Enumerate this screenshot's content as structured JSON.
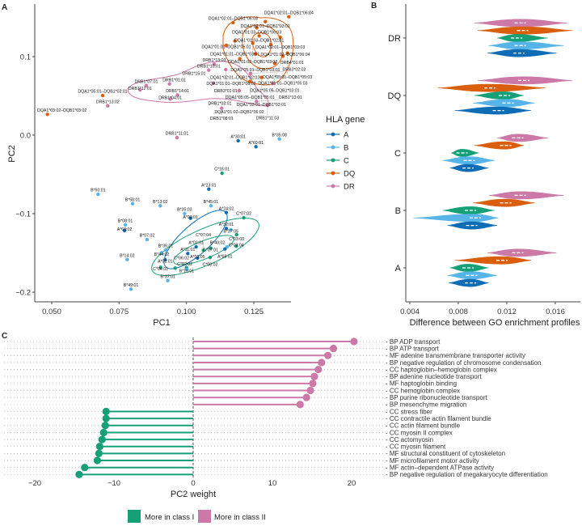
{
  "colors": {
    "A": "#0f6db5",
    "B": "#56b4e9",
    "C": "#16a077",
    "DQ": "#d95f0e",
    "DR": "#cc79a7"
  },
  "panels": {
    "a": "A",
    "b": "B",
    "c": "C"
  },
  "chart_data": [
    {
      "type": "scatter",
      "panel": "A",
      "xlabel": "PC1",
      "ylabel": "PC2",
      "xlim": [
        0.0437,
        0.139
      ],
      "ylim": [
        -0.211,
        0.167
      ],
      "xticks": [
        "0.050",
        "0.075",
        "0.100",
        "0.125"
      ],
      "xtick_values": [
        0.05,
        0.075,
        0.1,
        0.125
      ],
      "yticks": [
        "0.1",
        "0.0",
        "−0.1",
        "−0.2"
      ],
      "ytick_values": [
        0.1,
        0.0,
        -0.1,
        -0.2
      ],
      "legend": {
        "title": "HLA gene",
        "entries": [
          "A",
          "B",
          "C",
          "DQ",
          "DR"
        ],
        "placement": "right"
      },
      "points": [
        {
          "label": "DQA1*03:02–DQB1*03:02",
          "gene": "DQ",
          "x": 0.0484,
          "y": 0.0265
        },
        {
          "label": "DQA1*05:01–DQB1*02:01",
          "gene": "DQ",
          "x": 0.0689,
          "y": 0.0505
        },
        {
          "label": "DQA1*02:01–DQB1*06:03",
          "gene": "DQ",
          "x": 0.1173,
          "y": 0.1433
        },
        {
          "label": "DQA1*02:01–DQB1*06:04",
          "gene": "DQ",
          "x": 0.138,
          "y": 0.1508
        },
        {
          "label": "DQA1*02:01–DQB1*03:01",
          "gene": "DQ",
          "x": 0.1293,
          "y": 0.1446
        },
        {
          "label": "DQA1*01:03–DQB1*06:03",
          "gene": "DQ",
          "x": 0.1261,
          "y": 0.1368
        },
        {
          "label": "DQA1*01:03–DQB1*02:01",
          "gene": "DQ",
          "x": 0.127,
          "y": 0.1265
        },
        {
          "label": "DQA1*02:01–DQB1*03:03",
          "gene": "DQ",
          "x": 0.1348,
          "y": 0.1247
        },
        {
          "label": "DQA1*01:01–DQB1*03:01",
          "gene": "DQ",
          "x": 0.118,
          "y": 0.12
        },
        {
          "label": "DQA1*01:02–DQB1*03:03",
          "gene": "DQ",
          "x": 0.1246,
          "y": 0.1172
        },
        {
          "label": "DQA1*01:02–DQB1*06:04",
          "gene": "DQ",
          "x": 0.1313,
          "y": 0.1155
        },
        {
          "label": "DQA1*01:01–DQB1*05:01",
          "gene": "DQ",
          "x": 0.1148,
          "y": 0.1144
        },
        {
          "label": "DQA1*05:01–DQB1*03:01",
          "gene": "DQ",
          "x": 0.1256,
          "y": 0.1034
        },
        {
          "label": "DQA1*05:01–DQB1*05:03",
          "gene": "DQ",
          "x": 0.1375,
          "y": 0.1046
        },
        {
          "label": "DQA1*02:01–DQB1*02:02",
          "gene": "DQ",
          "x": 0.1198,
          "y": 0.0972
        },
        {
          "label": "DQA1*01:01–DQB1*05:03",
          "gene": "DQ",
          "x": 0.1358,
          "y": 0.1007
        },
        {
          "label": "DQA1*05:05–DQB1*03:01",
          "gene": "DQ",
          "x": 0.1328,
          "y": 0.0914
        },
        {
          "label": "DQA1*01:01–DQB1*06:02",
          "gene": "DQ",
          "x": 0.1238,
          "y": 0.0784
        },
        {
          "label": "DQA1*05:05–DQB1*05:01",
          "gene": "DQ",
          "x": 0.1236,
          "y": 0.0684
        },
        {
          "label": "DQA1*03:01–DQB1*03:01",
          "gene": "DQ",
          "x": 0.1278,
          "y": 0.0735
        },
        {
          "label": "DQA1*01:02–DQB1*06:02",
          "gene": "DQ",
          "x": 0.1196,
          "y": 0.0567
        },
        {
          "label": "DRB1*13:02",
          "gene": "DR",
          "x": 0.0708,
          "y": 0.0374
        },
        {
          "label": "DRB1*07:01",
          "gene": "DR",
          "x": 0.0851,
          "y": 0.0632
        },
        {
          "label": "DRB1*12:01",
          "gene": "DR",
          "x": 0.0828,
          "y": 0.0577
        },
        {
          "label": "DRB1*01:01",
          "gene": "DR",
          "x": 0.0937,
          "y": 0.0653
        },
        {
          "label": "DRB1*14:01",
          "gene": "DR",
          "x": 0.0967,
          "y": 0.0512
        },
        {
          "label": "DRB1*04:01",
          "gene": "DR",
          "x": 0.094,
          "y": 0.0461
        },
        {
          "label": "DRB1*10:01",
          "gene": "DR",
          "x": 0.1083,
          "y": 0.0828
        },
        {
          "label": "DRB1*13:03",
          "gene": "DR",
          "x": 0.1103,
          "y": 0.0904
        },
        {
          "label": "DRB3*01:01",
          "gene": "DR",
          "x": 0.1146,
          "y": 0.0835
        },
        {
          "label": "DRB3*02:02",
          "gene": "DR",
          "x": 0.1238,
          "y": 0.0787
        },
        {
          "label": "DRB1*15:01",
          "gene": "DR",
          "x": 0.11,
          "y": 0.0663
        },
        {
          "label": "DRB1*03:01",
          "gene": "DR",
          "x": 0.1196,
          "y": 0.0567
        },
        {
          "label": "DRB1*08:01",
          "gene": "DR",
          "x": 0.1131,
          "y": 0.0343
        },
        {
          "label": "DRB1*13:01",
          "gene": "DR",
          "x": 0.126,
          "y": 0.043
        },
        {
          "label": "DRB1*11:03",
          "gene": "DR",
          "x": 0.1301,
          "y": 0.0381
        },
        {
          "label": "DRB4*01:01",
          "gene": "DR",
          "x": 0.132,
          "y": 0.0657
        },
        {
          "label": "DRB1*11:01",
          "gene": "DR",
          "x": 0.0965,
          "y": -0.0031
        },
        {
          "label": "A*30:01",
          "gene": "A",
          "x": 0.1192,
          "y": -0.0072
        },
        {
          "label": "A*69:01",
          "gene": "A",
          "x": 0.1258,
          "y": -0.0148
        },
        {
          "label": "B*35:08",
          "gene": "B",
          "x": 0.1345,
          "y": -0.0048
        },
        {
          "label": "C*16:01",
          "gene": "C",
          "x": 0.1132,
          "y": -0.0485
        },
        {
          "label": "A*23:01",
          "gene": "A",
          "x": 0.1083,
          "y": -0.0687
        },
        {
          "label": "B*50:01",
          "gene": "B",
          "x": 0.0672,
          "y": -0.0753
        },
        {
          "label": "B*58:01",
          "gene": "B",
          "x": 0.08,
          "y": -0.0873
        },
        {
          "label": "B*13:02",
          "gene": "B",
          "x": 0.0903,
          "y": -0.09
        },
        {
          "label": "B*45:01",
          "gene": "B",
          "x": 0.1091,
          "y": -0.09
        },
        {
          "label": "B*35:03",
          "gene": "B",
          "x": 0.0993,
          "y": -0.1
        },
        {
          "label": "A*03:01",
          "gene": "A",
          "x": 0.1015,
          "y": -0.1059
        },
        {
          "label": "A*24:02",
          "gene": "A",
          "x": 0.1148,
          "y": -0.0986
        },
        {
          "label": "C*07:02",
          "gene": "C",
          "x": 0.1213,
          "y": -0.1052
        },
        {
          "label": "A*32:01",
          "gene": "A",
          "x": 0.1148,
          "y": -0.1189
        },
        {
          "label": "B*27:05",
          "gene": "B",
          "x": 0.1165,
          "y": -0.1206
        },
        {
          "label": "C*03:03",
          "gene": "C",
          "x": 0.1186,
          "y": -0.1268
        },
        {
          "label": "B*08:01",
          "gene": "B",
          "x": 0.0773,
          "y": -0.1144
        },
        {
          "label": "A*68:02",
          "gene": "A",
          "x": 0.077,
          "y": -0.1216
        },
        {
          "label": "B*07:02",
          "gene": "B",
          "x": 0.0854,
          "y": -0.133
        },
        {
          "label": "B*35:01",
          "gene": "B",
          "x": 0.0923,
          "y": -0.1464
        },
        {
          "label": "C*03:04",
          "gene": "C",
          "x": 0.1185,
          "y": -0.1415
        },
        {
          "label": "B*40:02",
          "gene": "B",
          "x": 0.1151,
          "y": -0.1423
        },
        {
          "label": "A*02:01",
          "gene": "A",
          "x": 0.1036,
          "y": -0.1423
        },
        {
          "label": "C*07:01",
          "gene": "C",
          "x": 0.109,
          "y": -0.144
        },
        {
          "label": "A*11:01",
          "gene": "A",
          "x": 0.1005,
          "y": -0.1508
        },
        {
          "label": "C*07:04",
          "gene": "C",
          "x": 0.1063,
          "y": -0.1467
        },
        {
          "label": "B*44:02",
          "gene": "B",
          "x": 0.0908,
          "y": -0.1498
        },
        {
          "label": "B*14:02",
          "gene": "B",
          "x": 0.078,
          "y": -0.1585
        },
        {
          "label": "A*01:01",
          "gene": "A",
          "x": 0.0921,
          "y": -0.1588
        },
        {
          "label": "C*04:01",
          "gene": "C",
          "x": 0.0904,
          "y": -0.1684
        },
        {
          "label": "A*02:05",
          "gene": "A",
          "x": 0.1041,
          "y": -0.1567
        },
        {
          "label": "A*68:01",
          "gene": "A",
          "x": 0.1143,
          "y": -0.145
        },
        {
          "label": "C*08:02",
          "gene": "C",
          "x": 0.1088,
          "y": -0.1557
        },
        {
          "label": "C*02:02",
          "gene": "C",
          "x": 0.0958,
          "y": -0.1694
        },
        {
          "label": "C*06:02",
          "gene": "C",
          "x": 0.1,
          "y": -0.1688
        },
        {
          "label": "B*15:01",
          "gene": "B",
          "x": 0.1001,
          "y": -0.171
        },
        {
          "label": "B*37:01",
          "gene": "B",
          "x": 0.0931,
          "y": -0.1852
        },
        {
          "label": "B*49:01",
          "gene": "B",
          "x": 0.0794,
          "y": -0.1962
        }
      ]
    },
    {
      "type": "violin",
      "panel": "B",
      "xlabel": "Difference between GO enrichment profiles",
      "xlim": [
        0.0037,
        0.0173
      ],
      "xticks": [
        "0.004",
        "0.008",
        "0.012",
        "0.016"
      ],
      "xtick_values": [
        0.004,
        0.008,
        0.012,
        0.016
      ],
      "categories": [
        "DR",
        "DQ",
        "C",
        "B",
        "A"
      ],
      "series_order": [
        "DR",
        "DQ",
        "C",
        "B",
        "A"
      ],
      "groups": {
        "DR": {
          "DR": [
            0.0093,
            0.0131,
            0.017
          ],
          "DQ": [
            0.0096,
            0.0133,
            0.0174
          ],
          "C": [
            0.0112,
            0.0128,
            0.0154
          ],
          "B": [
            0.0105,
            0.0131,
            0.0167
          ],
          "A": [
            0.0104,
            0.013,
            0.0161
          ]
        },
        "DQ": {
          "DR": [
            0.0096,
            0.0134,
            0.0174
          ],
          "DQ": [
            0.0063,
            0.0106,
            0.0152
          ],
          "C": [
            0.0093,
            0.0118,
            0.0134
          ],
          "B": [
            0.0092,
            0.0121,
            0.0143
          ],
          "A": [
            0.0077,
            0.0113,
            0.014
          ]
        },
        "C": {
          "DR": [
            0.0112,
            0.0129,
            0.0154
          ],
          "DQ": [
            0.0093,
            0.0119,
            0.0134
          ],
          "C": [
            0.0074,
            0.0083,
            0.0097
          ],
          "B": [
            0.0067,
            0.0089,
            0.011
          ],
          "A": [
            0.0073,
            0.0088,
            0.0105
          ]
        },
        "B": {
          "DR": [
            0.0105,
            0.0131,
            0.0167
          ],
          "DQ": [
            0.0092,
            0.0119,
            0.0143
          ],
          "C": [
            0.0067,
            0.009,
            0.011
          ],
          "B": [
            0.0043,
            0.0094,
            0.0113
          ],
          "A": [
            0.0071,
            0.0091,
            0.0112
          ]
        },
        "A": {
          "DR": [
            0.0104,
            0.0129,
            0.0161
          ],
          "DQ": [
            0.0077,
            0.0116,
            0.014
          ],
          "C": [
            0.0073,
            0.0088,
            0.0105
          ],
          "B": [
            0.0071,
            0.0091,
            0.0112
          ],
          "A": [
            0.0072,
            0.009,
            0.0105
          ]
        }
      },
      "value_format": "[min, median, max]"
    },
    {
      "type": "lollipop",
      "panel": "C",
      "xlabel": "PC2 weight",
      "xlim": [
        -24.5,
        24.5
      ],
      "xticks": [
        "−20",
        "−10",
        "0",
        "10",
        "20"
      ],
      "xtick_values": [
        -20,
        -10,
        0,
        10,
        20
      ],
      "legend": {
        "entries": [
          {
            "label": "More in class I",
            "color": "#16a077"
          },
          {
            "label": "More in class II",
            "color": "#cc79a7"
          }
        ],
        "placement": "bottom"
      },
      "terms": [
        {
          "label": "BP ADP transport",
          "value": 20.3
        },
        {
          "label": "BP ATP transport",
          "value": 17.7
        },
        {
          "label": "MF adenine transmembrane transporter activity",
          "value": 17.0
        },
        {
          "label": "BP negative regulation of chromosome condensation",
          "value": 16.2
        },
        {
          "label": "CC haptoglobin–hemoglobin complex",
          "value": 15.8
        },
        {
          "label": "BP adenine nucleotide transport",
          "value": 15.3
        },
        {
          "label": "MF haptoglobin binding",
          "value": 15.1
        },
        {
          "label": "CC hemoglobin complex",
          "value": 14.8
        },
        {
          "label": "BP purine ribonucleotide transport",
          "value": 14.3
        },
        {
          "label": "BP mesenchyme migration",
          "value": 13.5
        },
        {
          "label": "CC stress fiber",
          "value": -11.0
        },
        {
          "label": "CC contractile actin filament bundle",
          "value": -11.0
        },
        {
          "label": "CC actin filament bundle",
          "value": -11.1
        },
        {
          "label": "CC myosin II complex",
          "value": -11.3
        },
        {
          "label": "CC actomyosin",
          "value": -11.5
        },
        {
          "label": "CC myosin filament",
          "value": -11.8
        },
        {
          "label": "MF structural constituent of cytoskeleton",
          "value": -11.9
        },
        {
          "label": "MF microfilament motor activity",
          "value": -12.1
        },
        {
          "label": "MF actin–dependent ATPase activity",
          "value": -13.7
        },
        {
          "label": "BP negative regulation of megakaryocyte differentiation",
          "value": -14.4
        }
      ]
    }
  ]
}
